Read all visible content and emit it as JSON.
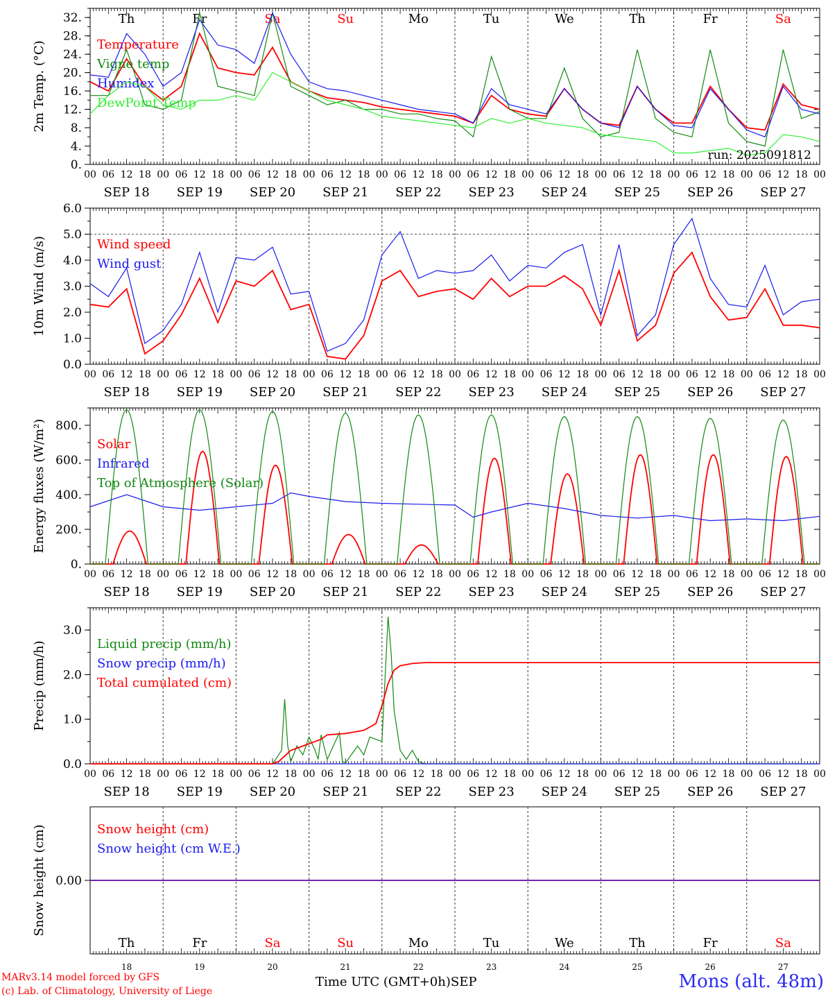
{
  "run_label": "run: 2025091812",
  "x_axis_title": "Time UTC (GMT+0h)",
  "x_axis_month": "SEP",
  "credits": [
    "MARv3.14 model forced by GFS",
    "(c) Lab. of Climatology, University of Liege"
  ],
  "station": "Mons (alt. 48m)",
  "colors": {
    "red": "#ff0000",
    "green": "#118811",
    "blue": "#1a1aee",
    "lightgreen": "#33ee33",
    "weekend": "#ff0000",
    "weekday": "#000000"
  },
  "days": [
    {
      "dow": "Th",
      "date": "SEP 18",
      "num": "18",
      "weekend": false
    },
    {
      "dow": "Fr",
      "date": "SEP 19",
      "num": "19",
      "weekend": false
    },
    {
      "dow": "Sa",
      "date": "SEP 20",
      "num": "20",
      "weekend": true
    },
    {
      "dow": "Su",
      "date": "SEP 21",
      "num": "21",
      "weekend": true
    },
    {
      "dow": "Mo",
      "date": "SEP 22",
      "num": "22",
      "weekend": false
    },
    {
      "dow": "Tu",
      "date": "SEP 23",
      "num": "23",
      "weekend": false
    },
    {
      "dow": "We",
      "date": "SEP 24",
      "num": "24",
      "weekend": false
    },
    {
      "dow": "Th",
      "date": "SEP 25",
      "num": "25",
      "weekend": false
    },
    {
      "dow": "Fr",
      "date": "SEP 26",
      "num": "26",
      "weekend": false
    },
    {
      "dow": "Sa",
      "date": "SEP 27",
      "num": "27",
      "weekend": true
    }
  ],
  "hour_ticks": [
    "00",
    "06",
    "12",
    "18"
  ],
  "chart_data": [
    {
      "type": "line",
      "ylabel": "2m Temp. (°C)",
      "ylim": [
        0,
        34
      ],
      "yticks": [
        0,
        4,
        8,
        12,
        16,
        20,
        24,
        28,
        32
      ],
      "ytick_labels": [
        "0.",
        "4.",
        "8.",
        "12.",
        "16.",
        "20.",
        "24.",
        "28.",
        "32."
      ],
      "series": [
        {
          "name": "Temperature",
          "color": "red",
          "x_hours": [
            0,
            6,
            12,
            18,
            24,
            30,
            36,
            42,
            48,
            54,
            60,
            66,
            72,
            78,
            84,
            90,
            96,
            102,
            108,
            114,
            120,
            126,
            132,
            138,
            144,
            150,
            156,
            162,
            168,
            174,
            180,
            186,
            192,
            198,
            204,
            210,
            216,
            222,
            228,
            234,
            240
          ],
          "values": [
            18,
            16,
            23,
            17,
            14,
            17,
            28.5,
            21,
            20,
            19.5,
            25.5,
            18,
            16,
            14.5,
            14,
            13.5,
            12.5,
            12,
            11.5,
            11,
            10.5,
            9,
            15,
            12,
            11,
            10.5,
            16.5,
            12,
            9,
            8.5,
            17,
            12,
            9,
            9,
            17,
            12,
            8,
            7.5,
            17.5,
            13,
            12
          ]
        },
        {
          "name": "Vigne temp",
          "color": "green",
          "x_hours": [
            0,
            6,
            12,
            18,
            24,
            30,
            36,
            42,
            48,
            54,
            60,
            66,
            72,
            78,
            84,
            90,
            96,
            102,
            108,
            114,
            120,
            126,
            132,
            138,
            144,
            150,
            156,
            162,
            168,
            174,
            180,
            186,
            192,
            198,
            204,
            210,
            216,
            222,
            228,
            234,
            240
          ],
          "values": [
            15,
            15,
            25,
            13,
            12,
            14,
            33,
            17,
            16,
            15,
            33,
            17,
            15,
            13,
            14,
            12,
            12,
            11,
            11,
            10,
            9.5,
            6,
            23.5,
            12,
            10,
            10,
            21,
            10,
            6,
            7,
            25,
            10,
            7,
            6,
            25,
            9,
            5,
            4,
            25,
            10,
            11.5
          ]
        },
        {
          "name": "Humidex",
          "color": "blue",
          "x_hours": [
            0,
            6,
            12,
            18,
            24,
            30,
            36,
            42,
            48,
            54,
            60,
            66,
            72,
            78,
            84,
            90,
            96,
            102,
            108,
            114,
            120,
            126,
            132,
            138,
            144,
            150,
            156,
            162,
            168,
            174,
            180,
            186,
            192,
            198,
            204,
            210,
            216,
            222,
            228,
            234,
            240
          ],
          "values": [
            19.5,
            19,
            28.5,
            24,
            17,
            20,
            31.5,
            26,
            25,
            22,
            33,
            24,
            18,
            16.5,
            16,
            15,
            14,
            13,
            12,
            11.5,
            11,
            9,
            16.5,
            13,
            12,
            11,
            16.5,
            12,
            9,
            8,
            17,
            12,
            8.5,
            8,
            16.5,
            12,
            7.5,
            6,
            17,
            12,
            11
          ]
        },
        {
          "name": "DewPoint Temp",
          "color": "lightgreen",
          "x_hours": [
            0,
            6,
            12,
            18,
            24,
            30,
            36,
            42,
            48,
            54,
            60,
            66,
            72,
            78,
            84,
            90,
            96,
            102,
            108,
            114,
            120,
            126,
            132,
            138,
            144,
            150,
            156,
            162,
            168,
            174,
            180,
            186,
            192,
            198,
            204,
            210,
            216,
            222,
            228,
            234,
            240
          ],
          "values": [
            11,
            15,
            18,
            17,
            13,
            12,
            14,
            14,
            15,
            14,
            20,
            18,
            16,
            14,
            13,
            12,
            10.5,
            10,
            9.5,
            9,
            8.5,
            8,
            10,
            9,
            10,
            9,
            8.5,
            8,
            6.5,
            6,
            5.5,
            5,
            2.5,
            2.5,
            3,
            3.5,
            2,
            2.5,
            6.5,
            6,
            5
          ]
        }
      ]
    },
    {
      "type": "line",
      "ylabel": "10m Wind (m/s)",
      "ylim": [
        0,
        6
      ],
      "yticks": [
        0,
        1,
        2,
        3,
        4,
        5,
        6
      ],
      "ytick_labels": [
        "0.0",
        "1.0",
        "2.0",
        "3.0",
        "4.0",
        "5.0",
        "6.0"
      ],
      "reference_line": 5.0,
      "series": [
        {
          "name": "Wind speed",
          "color": "red",
          "x_hours": [
            0,
            6,
            12,
            18,
            24,
            30,
            36,
            42,
            48,
            54,
            60,
            66,
            72,
            78,
            84,
            90,
            96,
            102,
            108,
            114,
            120,
            126,
            132,
            138,
            144,
            150,
            156,
            162,
            168,
            174,
            180,
            186,
            192,
            198,
            204,
            210,
            216,
            222,
            228,
            234,
            240
          ],
          "values": [
            2.3,
            2.2,
            2.9,
            0.4,
            0.9,
            1.9,
            3.3,
            1.6,
            3.2,
            3.0,
            3.6,
            2.1,
            2.3,
            0.3,
            0.2,
            1.1,
            3.2,
            3.6,
            2.6,
            2.8,
            2.9,
            2.5,
            3.3,
            2.6,
            3.0,
            3.0,
            3.4,
            2.9,
            1.5,
            3.6,
            0.9,
            1.5,
            3.5,
            4.3,
            2.6,
            1.7,
            1.8,
            2.9,
            1.5,
            1.5,
            1.4
          ]
        },
        {
          "name": "Wind gust",
          "color": "blue",
          "x_hours": [
            0,
            6,
            12,
            18,
            24,
            30,
            36,
            42,
            48,
            54,
            60,
            66,
            72,
            78,
            84,
            90,
            96,
            102,
            108,
            114,
            120,
            126,
            132,
            138,
            144,
            150,
            156,
            162,
            168,
            174,
            180,
            186,
            192,
            198,
            204,
            210,
            216,
            222,
            228,
            234,
            240
          ],
          "values": [
            3.1,
            2.6,
            3.7,
            0.8,
            1.3,
            2.3,
            4.3,
            2.0,
            4.1,
            4.0,
            4.5,
            2.7,
            2.8,
            0.5,
            0.8,
            1.7,
            4.2,
            5.1,
            3.3,
            3.6,
            3.5,
            3.6,
            4.2,
            3.2,
            3.8,
            3.7,
            4.3,
            4.6,
            1.9,
            4.6,
            1.1,
            1.9,
            4.6,
            5.6,
            3.3,
            2.3,
            2.2,
            3.8,
            1.9,
            2.4,
            2.5
          ]
        }
      ]
    },
    {
      "type": "line",
      "ylabel": "Energy fluxes (W/m²)",
      "ylim": [
        0,
        900
      ],
      "yticks": [
        0,
        200,
        400,
        600,
        800
      ],
      "ytick_labels": [
        "0.",
        "200.",
        "400.",
        "600.",
        "800."
      ],
      "series": [
        {
          "name": "Solar",
          "color": "red",
          "daily_peak_hour": 13,
          "daily_peaks": [
            190,
            650,
            570,
            170,
            110,
            610,
            520,
            630,
            630,
            620
          ]
        },
        {
          "name": "Infrared",
          "color": "blue",
          "x_hours": [
            0,
            12,
            24,
            36,
            48,
            60,
            66,
            72,
            84,
            96,
            108,
            120,
            126,
            132,
            144,
            156,
            168,
            180,
            192,
            204,
            216,
            228,
            240
          ],
          "values": [
            330,
            400,
            330,
            310,
            330,
            350,
            410,
            390,
            360,
            350,
            345,
            340,
            270,
            300,
            350,
            320,
            280,
            265,
            280,
            250,
            260,
            250,
            275
          ]
        },
        {
          "name": "Top of Atmosphere (Solar)",
          "color": "green",
          "daily_peak_hour": 12,
          "daily_peaks": [
            890,
            890,
            880,
            870,
            860,
            860,
            850,
            850,
            840,
            830
          ]
        }
      ]
    },
    {
      "type": "line",
      "ylabel": "Precip (mm/h)",
      "ylim": [
        0,
        3.5
      ],
      "yticks": [
        0,
        1,
        2,
        3
      ],
      "ytick_labels": [
        "0.0",
        "1.0",
        "2.0",
        "3.0"
      ],
      "series": [
        {
          "name": "Liquid precip (mm/h)",
          "color": "green",
          "x_hours": [
            0,
            60,
            63,
            64,
            65,
            66,
            68,
            70,
            72,
            74,
            75,
            76,
            78,
            82,
            83,
            84,
            88,
            90,
            92,
            96,
            98,
            99,
            100,
            102,
            104,
            106,
            108,
            110,
            240
          ],
          "values": [
            0,
            0,
            0.3,
            1.45,
            0.4,
            0.05,
            0.4,
            0.2,
            0.6,
            0.3,
            0.1,
            0.65,
            0.1,
            0.7,
            0.05,
            0.02,
            0.4,
            0.2,
            0.6,
            0.5,
            3.3,
            2.5,
            1.2,
            0.3,
            0.1,
            0.3,
            0.05,
            0,
            0
          ]
        },
        {
          "name": "Snow precip (mm/h)",
          "color": "blue",
          "x_hours": [
            0,
            240
          ],
          "values": [
            0,
            0
          ]
        },
        {
          "name": "Total cumulated (cm)",
          "color": "red",
          "x_hours": [
            0,
            60,
            62,
            66,
            72,
            76,
            78,
            84,
            90,
            94,
            96,
            98,
            100,
            102,
            106,
            110,
            240
          ],
          "values": [
            0,
            0,
            0.05,
            0.3,
            0.45,
            0.55,
            0.65,
            0.68,
            0.75,
            0.9,
            1.3,
            1.8,
            2.1,
            2.2,
            2.25,
            2.27,
            2.27
          ]
        }
      ]
    },
    {
      "type": "line",
      "ylabel": "Snow height (cm)",
      "ylim": [
        -1,
        1
      ],
      "yticks": [
        0
      ],
      "ytick_labels": [
        "0.00"
      ],
      "series": [
        {
          "name": "Snow height (cm)",
          "color": "red",
          "x_hours": [
            0,
            240
          ],
          "values": [
            0,
            0
          ]
        },
        {
          "name": "Snow height (cm W.E.)",
          "color": "blue",
          "x_hours": [
            0,
            240
          ],
          "values": [
            0,
            0
          ]
        }
      ]
    }
  ]
}
